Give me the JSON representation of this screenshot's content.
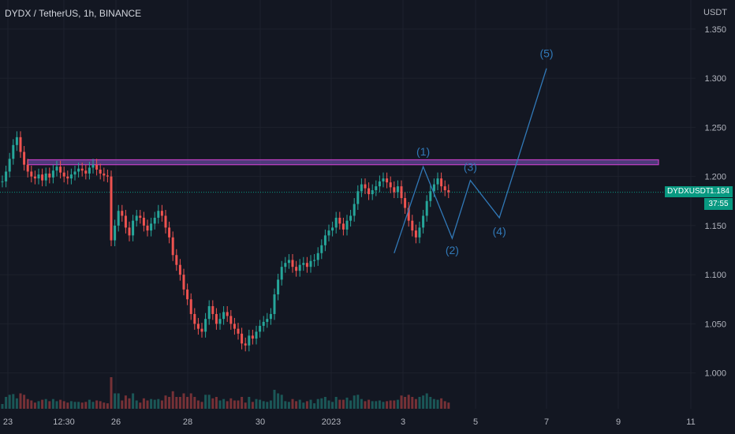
{
  "header": {
    "title": "DYDX / TetherUS, 1h, BINANCE",
    "unit": "USDT"
  },
  "price_tag": {
    "symbol": "DYDXUSDT",
    "price": "1.184",
    "countdown": "37:55"
  },
  "colors": {
    "background": "#131722",
    "up": "#26a69a",
    "down": "#ef5350",
    "grid": "#1e222d",
    "axis_text": "#b2b5be",
    "wave": "#3179b8",
    "resistance_fill": "#7e57c2",
    "resistance_border": "#c13fc4",
    "last_price": "#089981"
  },
  "chart_data": {
    "type": "line",
    "title": "DYDX / TetherUS, 1h, BINANCE",
    "ylim": [
      0.97,
      1.37
    ],
    "y_ticks": [
      "1.350",
      "1.300",
      "1.250",
      "1.200",
      "1.150",
      "1.100",
      "1.050",
      "1.000"
    ],
    "x_ticks": [
      "23",
      "12:30",
      "26",
      "28",
      "30",
      "2023",
      "3",
      "5",
      "7",
      "9",
      "11"
    ],
    "grid": true,
    "series": [
      {
        "values": [
          1.195,
          1.205,
          1.218,
          1.232,
          1.24,
          1.225,
          1.212,
          1.205,
          1.2,
          1.198,
          1.202,
          1.196,
          1.203,
          1.199,
          1.206,
          1.21,
          1.204,
          1.2,
          1.198,
          1.202,
          1.205,
          1.208,
          1.206,
          1.203,
          1.209,
          1.212,
          1.207,
          1.203,
          1.201,
          1.2,
          1.135,
          1.15,
          1.165,
          1.16,
          1.148,
          1.14,
          1.155,
          1.16,
          1.158,
          1.15,
          1.145,
          1.152,
          1.158,
          1.165,
          1.16,
          1.148,
          1.138,
          1.12,
          1.11,
          1.1,
          1.085,
          1.075,
          1.06,
          1.05,
          1.045,
          1.042,
          1.055,
          1.068,
          1.06,
          1.05,
          1.055,
          1.062,
          1.058,
          1.05,
          1.045,
          1.04,
          1.03,
          1.028,
          1.038,
          1.035,
          1.042,
          1.048,
          1.052,
          1.055,
          1.06,
          1.08,
          1.095,
          1.108,
          1.112,
          1.115,
          1.108,
          1.104,
          1.11,
          1.112,
          1.108,
          1.114,
          1.115,
          1.122,
          1.13,
          1.14,
          1.145,
          1.148,
          1.158,
          1.152,
          1.146,
          1.155,
          1.16,
          1.172,
          1.185,
          1.192,
          1.188,
          1.182,
          1.186,
          1.19,
          1.195,
          1.198,
          1.194,
          1.189,
          1.184,
          1.19,
          1.178,
          1.168,
          1.155,
          1.145,
          1.138,
          1.148,
          1.16,
          1.175,
          1.185,
          1.192,
          1.198,
          1.19,
          1.186,
          1.184
        ]
      }
    ],
    "resistance": {
      "low": 1.212,
      "high": 1.217
    },
    "last_price": 1.184,
    "wave_labels": [
      "(1)",
      "(2)",
      "(3)",
      "(4)",
      "(5)"
    ],
    "wave_points": [
      {
        "t": 108,
        "price": 1.122
      },
      {
        "t": 116,
        "price": 1.21
      },
      {
        "t": 124,
        "price": 1.137
      },
      {
        "t": 129,
        "price": 1.196
      },
      {
        "t": 137,
        "price": 1.158
      },
      {
        "t": 150,
        "price": 1.31
      }
    ]
  }
}
